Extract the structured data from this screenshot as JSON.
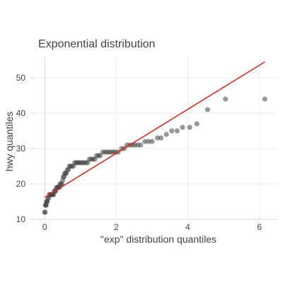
{
  "chart_data": {
    "type": "scatter",
    "title": "Exponential distribution",
    "xlabel": "\"exp\" distribution quantiles",
    "ylabel": "hwy quantiles",
    "xlim": [
      -0.3,
      6.5
    ],
    "ylim": [
      10,
      56
    ],
    "x_ticks": [
      0,
      2,
      4,
      6
    ],
    "y_ticks": [
      10,
      20,
      30,
      40,
      50
    ],
    "grid": true,
    "point_color": "#444444",
    "point_opacity": 0.55,
    "line_color": "#d62d20",
    "series": [
      {
        "type": "scatter",
        "points": [
          [
            0.0,
            12
          ],
          [
            0.01,
            12
          ],
          [
            0.02,
            14
          ],
          [
            0.03,
            14
          ],
          [
            0.04,
            14
          ],
          [
            0.05,
            15
          ],
          [
            0.06,
            15
          ],
          [
            0.07,
            15
          ],
          [
            0.09,
            16
          ],
          [
            0.11,
            16
          ],
          [
            0.13,
            17
          ],
          [
            0.15,
            17
          ],
          [
            0.17,
            17
          ],
          [
            0.19,
            17
          ],
          [
            0.21,
            17
          ],
          [
            0.23,
            17
          ],
          [
            0.25,
            17
          ],
          [
            0.27,
            18
          ],
          [
            0.29,
            18
          ],
          [
            0.31,
            18
          ],
          [
            0.33,
            19
          ],
          [
            0.35,
            19
          ],
          [
            0.37,
            19
          ],
          [
            0.39,
            19
          ],
          [
            0.41,
            19
          ],
          [
            0.43,
            20
          ],
          [
            0.45,
            20
          ],
          [
            0.48,
            20
          ],
          [
            0.5,
            21
          ],
          [
            0.52,
            22
          ],
          [
            0.54,
            22
          ],
          [
            0.56,
            23
          ],
          [
            0.58,
            23
          ],
          [
            0.6,
            23
          ],
          [
            0.63,
            24
          ],
          [
            0.66,
            24
          ],
          [
            0.69,
            25
          ],
          [
            0.72,
            25
          ],
          [
            0.76,
            25
          ],
          [
            0.8,
            25
          ],
          [
            0.84,
            26
          ],
          [
            0.88,
            26
          ],
          [
            0.92,
            26
          ],
          [
            0.96,
            26
          ],
          [
            1.0,
            26
          ],
          [
            1.05,
            26
          ],
          [
            1.1,
            26
          ],
          [
            1.15,
            26
          ],
          [
            1.2,
            26
          ],
          [
            1.25,
            27
          ],
          [
            1.3,
            27
          ],
          [
            1.35,
            27
          ],
          [
            1.4,
            27
          ],
          [
            1.45,
            28
          ],
          [
            1.5,
            28
          ],
          [
            1.55,
            28
          ],
          [
            1.62,
            29
          ],
          [
            1.68,
            29
          ],
          [
            1.74,
            29
          ],
          [
            1.8,
            29
          ],
          [
            1.86,
            29
          ],
          [
            1.92,
            29
          ],
          [
            1.98,
            29
          ],
          [
            2.05,
            29
          ],
          [
            2.15,
            30
          ],
          [
            2.22,
            30
          ],
          [
            2.3,
            31
          ],
          [
            2.38,
            31
          ],
          [
            2.45,
            31
          ],
          [
            2.52,
            31
          ],
          [
            2.6,
            31
          ],
          [
            2.68,
            31
          ],
          [
            2.8,
            32
          ],
          [
            2.9,
            32
          ],
          [
            3.0,
            32
          ],
          [
            3.15,
            33
          ],
          [
            3.25,
            33
          ],
          [
            3.4,
            34
          ],
          [
            3.55,
            35
          ],
          [
            3.7,
            35
          ],
          [
            3.85,
            36
          ],
          [
            4.05,
            36
          ],
          [
            4.25,
            37
          ],
          [
            4.55,
            41
          ],
          [
            5.05,
            44
          ],
          [
            6.15,
            44
          ]
        ]
      },
      {
        "type": "line",
        "name": "",
        "points": [
          [
            0.0,
            16.2
          ],
          [
            6.15,
            54.5
          ]
        ]
      }
    ]
  }
}
